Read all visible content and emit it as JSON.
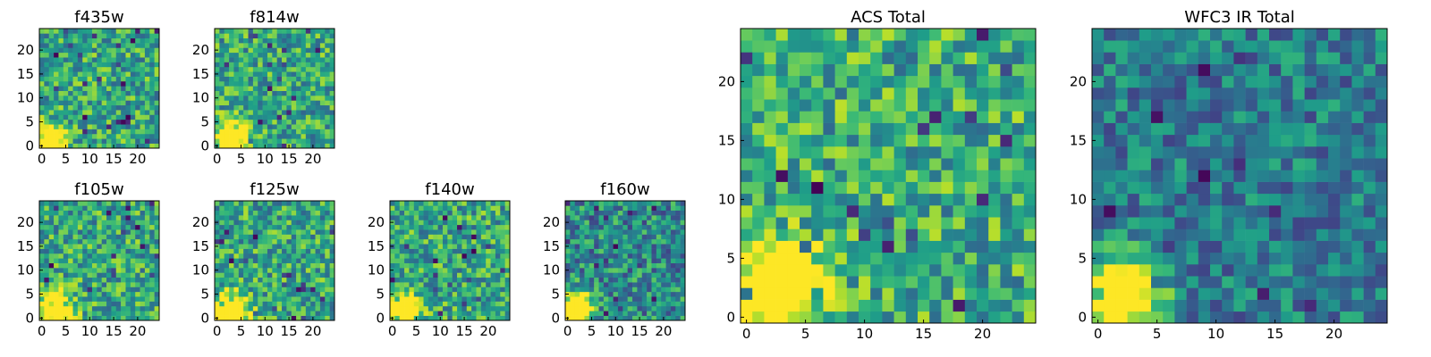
{
  "chart_data": [
    {
      "type": "heatmap",
      "title": "f435w",
      "colormap": "viridis",
      "grid": "25x25",
      "xlim": [
        0,
        24
      ],
      "ylim": [
        0,
        24
      ],
      "xticks": [
        "0",
        "5",
        "10",
        "15",
        "20"
      ],
      "yticks": [
        "0",
        "5",
        "10",
        "15",
        "20"
      ],
      "source_peak": [
        2,
        1
      ],
      "peak_value": 0.85
    },
    {
      "type": "heatmap",
      "title": "f814w",
      "colormap": "viridis",
      "grid": "25x25",
      "xlim": [
        0,
        24
      ],
      "ylim": [
        0,
        24
      ],
      "xticks": [
        "0",
        "5",
        "10",
        "15",
        "20"
      ],
      "yticks": [
        "0",
        "5",
        "10",
        "15",
        "20"
      ],
      "source_peak": [
        3,
        2
      ],
      "peak_value": 0.9
    },
    {
      "type": "heatmap",
      "title": "f105w",
      "colormap": "viridis",
      "grid": "25x25",
      "xlim": [
        0,
        24
      ],
      "ylim": [
        0,
        24
      ],
      "xticks": [
        "0",
        "5",
        "10",
        "15",
        "20"
      ],
      "yticks": [
        "0",
        "5",
        "10",
        "15",
        "20"
      ],
      "source_peak": [
        3,
        2
      ],
      "peak_value": 1.0
    },
    {
      "type": "heatmap",
      "title": "f125w",
      "colormap": "viridis",
      "grid": "25x25",
      "xlim": [
        0,
        24
      ],
      "ylim": [
        0,
        24
      ],
      "xticks": [
        "0",
        "5",
        "10",
        "15",
        "20"
      ],
      "yticks": [
        "0",
        "5",
        "10",
        "15",
        "20"
      ],
      "source_peak": [
        3,
        2
      ],
      "peak_value": 0.95
    },
    {
      "type": "heatmap",
      "title": "f140w",
      "colormap": "viridis",
      "grid": "25x25",
      "xlim": [
        0,
        24
      ],
      "ylim": [
        0,
        24
      ],
      "xticks": [
        "0",
        "5",
        "10",
        "15",
        "20"
      ],
      "yticks": [
        "0",
        "5",
        "10",
        "15",
        "20"
      ],
      "source_peak": [
        2,
        2
      ],
      "peak_value": 1.0
    },
    {
      "type": "heatmap",
      "title": "f160w",
      "colormap": "viridis",
      "grid": "25x25",
      "xlim": [
        0,
        24
      ],
      "ylim": [
        0,
        24
      ],
      "xticks": [
        "0",
        "5",
        "10",
        "15",
        "20"
      ],
      "yticks": [
        "0",
        "5",
        "10",
        "15",
        "20"
      ],
      "source_peak": [
        2,
        2
      ],
      "peak_value": 1.0
    },
    {
      "type": "heatmap",
      "title": "ACS Total",
      "colormap": "viridis",
      "grid": "25x25",
      "xlim": [
        0,
        24
      ],
      "ylim": [
        0,
        24
      ],
      "xticks": [
        "0",
        "5",
        "10",
        "15",
        "20"
      ],
      "yticks": [
        "0",
        "5",
        "10",
        "15",
        "20"
      ],
      "source_peak": [
        3,
        3
      ],
      "peak_value": 0.95
    },
    {
      "type": "heatmap",
      "title": "WFC3 IR Total",
      "colormap": "viridis",
      "grid": "25x25",
      "xlim": [
        0,
        24
      ],
      "ylim": [
        0,
        24
      ],
      "xticks": [
        "0",
        "5",
        "10",
        "15",
        "20"
      ],
      "yticks": [
        "0",
        "5",
        "10",
        "15",
        "20"
      ],
      "source_peak": [
        2,
        2
      ],
      "peak_value": 1.0
    }
  ]
}
